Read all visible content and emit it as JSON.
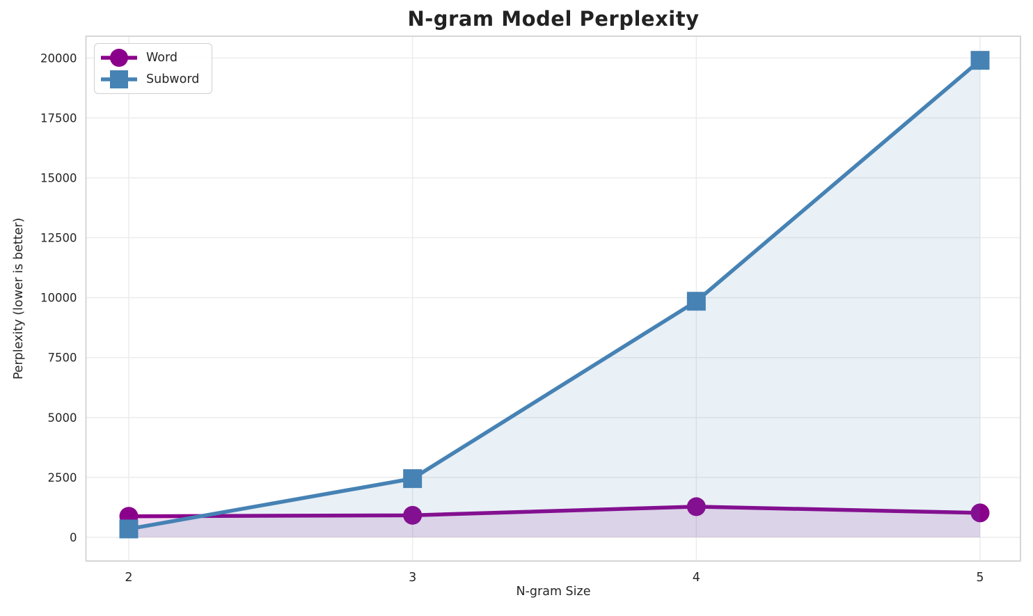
{
  "chart_data": {
    "type": "line",
    "title": "N-gram Model Perplexity",
    "xlabel": "N-gram Size",
    "ylabel": "Perplexity (lower is better)",
    "x": [
      2,
      3,
      4,
      5
    ],
    "x_tick_labels": [
      "2",
      "3",
      "4",
      "5"
    ],
    "yticks": [
      0,
      2500,
      5000,
      7500,
      10000,
      12500,
      15000,
      17500,
      20000
    ],
    "ylim": [
      0,
      20000
    ],
    "grid": true,
    "legend_position": "upper-left",
    "series": [
      {
        "name": "Word",
        "color": "#8B008B",
        "marker": "circle",
        "fill_opacity": 0.13,
        "values": [
          880,
          920,
          1280,
          1020
        ]
      },
      {
        "name": "Subword",
        "color": "#4682B4",
        "marker": "square",
        "fill_opacity": 0.12,
        "values": [
          350,
          2450,
          9850,
          19900
        ]
      }
    ]
  },
  "style": {
    "text_color": "#262626",
    "grid_color": "#ececec",
    "spine_color": "#d2d2d2",
    "background": "#ffffff"
  }
}
